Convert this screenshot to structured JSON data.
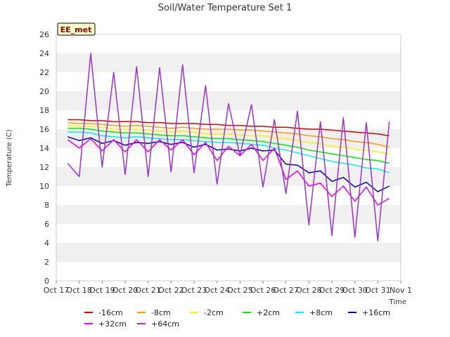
{
  "chart_data": {
    "type": "line",
    "title": "Soil/Water Temperature Set 1",
    "xlabel": "Time",
    "ylabel": "Temperature (C)",
    "badge": "EE_met",
    "ylim": [
      0,
      26
    ],
    "y_ticks": [
      0,
      2,
      4,
      6,
      8,
      10,
      12,
      14,
      16,
      18,
      20,
      22,
      24,
      26
    ],
    "xlim": [
      "2023-10-17",
      "2023-11-01"
    ],
    "x_ticks": [
      "Oct 17",
      "Oct 18",
      "Oct 19",
      "Oct 20",
      "Oct 21",
      "Oct 22",
      "Oct 23",
      "Oct 24",
      "Oct 25",
      "Oct 26",
      "Oct 27",
      "Oct 28",
      "Oct 29",
      "Oct 30",
      "Oct 31",
      "Nov 1"
    ],
    "grid": "horizontal bands",
    "legend_position": "bottom",
    "x": [
      "Oct 17 12:00",
      "Oct 18 00:00",
      "Oct 18 12:00",
      "Oct 19 00:00",
      "Oct 19 12:00",
      "Oct 20 00:00",
      "Oct 20 12:00",
      "Oct 21 00:00",
      "Oct 21 12:00",
      "Oct 22 00:00",
      "Oct 22 12:00",
      "Oct 23 00:00",
      "Oct 23 12:00",
      "Oct 24 00:00",
      "Oct 24 12:00",
      "Oct 25 00:00",
      "Oct 25 12:00",
      "Oct 26 00:00",
      "Oct 26 12:00",
      "Oct 27 00:00",
      "Oct 27 12:00",
      "Oct 28 00:00",
      "Oct 28 12:00",
      "Oct 29 00:00",
      "Oct 29 12:00",
      "Oct 30 00:00",
      "Oct 30 12:00",
      "Oct 31 00:00",
      "Oct 31 12:00"
    ],
    "series": [
      {
        "name": "-16cm",
        "color": "#dd0000",
        "values": [
          17.0,
          17.0,
          16.9,
          16.9,
          16.8,
          16.8,
          16.8,
          16.7,
          16.7,
          16.6,
          16.6,
          16.6,
          16.5,
          16.5,
          16.4,
          16.4,
          16.3,
          16.3,
          16.2,
          16.2,
          16.1,
          16.0,
          16.0,
          15.9,
          15.8,
          15.7,
          15.6,
          15.5,
          15.3
        ]
      },
      {
        "name": "-8cm",
        "color": "#ff9900",
        "values": [
          16.7,
          16.6,
          16.6,
          16.5,
          16.4,
          16.3,
          16.4,
          16.3,
          16.2,
          16.1,
          16.2,
          16.1,
          16.0,
          16.0,
          16.0,
          15.9,
          15.9,
          15.8,
          15.7,
          15.6,
          15.5,
          15.3,
          15.2,
          15.0,
          14.9,
          14.7,
          14.6,
          14.4,
          14.1
        ]
      },
      {
        "name": "-2cm",
        "color": "#ffee00",
        "values": [
          16.4,
          16.3,
          16.3,
          16.2,
          16.0,
          16.0,
          16.0,
          15.9,
          15.8,
          15.7,
          15.8,
          15.7,
          15.5,
          15.5,
          15.5,
          15.4,
          15.3,
          15.3,
          15.1,
          15.0,
          14.8,
          14.6,
          14.5,
          14.2,
          14.1,
          13.9,
          13.8,
          13.6,
          13.4
        ]
      },
      {
        "name": "+2cm",
        "color": "#00ee00",
        "values": [
          16.1,
          16.1,
          16.0,
          15.8,
          15.7,
          15.6,
          15.6,
          15.5,
          15.4,
          15.3,
          15.3,
          15.2,
          15.1,
          15.0,
          15.0,
          14.9,
          14.8,
          14.7,
          14.5,
          14.3,
          14.1,
          13.8,
          13.6,
          13.4,
          13.2,
          13.0,
          12.8,
          12.7,
          12.4
        ]
      },
      {
        "name": "+8cm",
        "color": "#00eeff",
        "values": [
          15.7,
          15.7,
          15.6,
          15.3,
          15.2,
          15.1,
          15.2,
          15.1,
          15.0,
          14.9,
          14.9,
          14.8,
          14.7,
          14.6,
          14.6,
          14.5,
          14.4,
          14.3,
          14.0,
          13.8,
          13.5,
          13.2,
          12.9,
          12.6,
          12.4,
          12.2,
          11.9,
          11.8,
          11.4
        ]
      },
      {
        "name": "+16cm",
        "color": "#0000cc",
        "values": [
          15.2,
          14.8,
          15.1,
          14.5,
          14.8,
          14.3,
          14.6,
          14.5,
          14.7,
          14.4,
          14.6,
          14.1,
          14.4,
          13.8,
          13.9,
          13.7,
          14.0,
          13.7,
          13.8,
          12.3,
          12.2,
          11.4,
          11.6,
          10.5,
          10.9,
          9.9,
          10.4,
          9.4,
          10.0
        ]
      },
      {
        "name": "+32cm",
        "color": "#ee00ee",
        "values": [
          14.9,
          14.0,
          15.0,
          13.7,
          14.9,
          13.6,
          14.9,
          13.6,
          14.9,
          13.8,
          14.9,
          13.3,
          14.6,
          12.7,
          14.2,
          13.2,
          14.4,
          12.7,
          14.0,
          10.7,
          11.6,
          10.0,
          10.3,
          8.9,
          10.0,
          8.4,
          9.9,
          8.0,
          8.7
        ]
      },
      {
        "name": "+64cm",
        "color": "#9933cc",
        "values": [
          12.4,
          11.0,
          24.0,
          12.0,
          22.0,
          11.2,
          22.6,
          11.0,
          22.5,
          11.5,
          22.8,
          11.4,
          20.6,
          10.2,
          18.7,
          13.2,
          18.6,
          9.9,
          17.0,
          9.2,
          17.9,
          5.9,
          16.8,
          4.8,
          17.2,
          4.6,
          16.7,
          4.2,
          16.8
        ]
      }
    ]
  }
}
